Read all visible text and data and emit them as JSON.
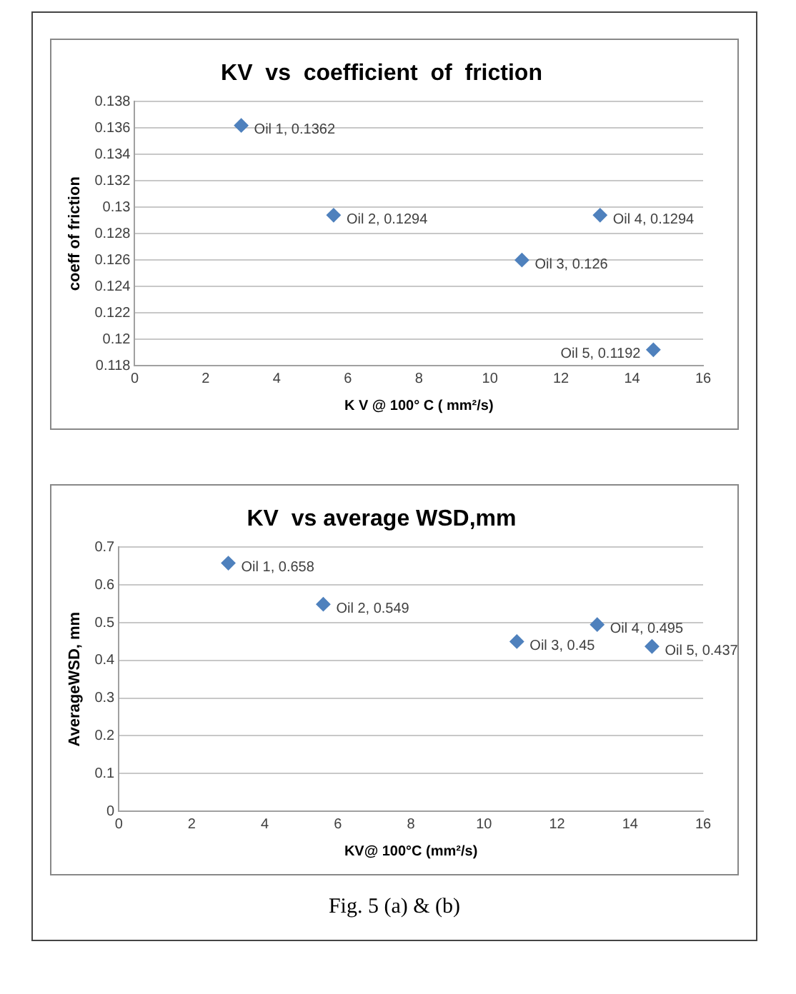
{
  "chart_data": [
    {
      "type": "scatter",
      "title": "KV  vs  coefficient  of  friction",
      "xlabel": "K V @ 100° C ( mm²/s)",
      "ylabel": "coeff of friction",
      "marker": "diamond",
      "grid": "y",
      "xlim": [
        0,
        16
      ],
      "xticks": [
        0,
        2,
        4,
        6,
        8,
        10,
        12,
        14,
        16
      ],
      "ylim": [
        0.118,
        0.138
      ],
      "yticks": [
        0.118,
        0.12,
        0.122,
        0.124,
        0.126,
        0.128,
        0.13,
        0.132,
        0.134,
        0.136,
        0.138
      ],
      "series": [
        {
          "color": "#4f81bd",
          "x": [
            3.0,
            5.6,
            10.9,
            13.1,
            14.6
          ],
          "values": [
            0.1362,
            0.1294,
            0.126,
            0.1294,
            0.1192
          ],
          "value_labels": [
            "Oil 1, 0.1362",
            "Oil 2, 0.1294",
            "Oil 3, 0.126",
            "Oil 4, 0.1294",
            "Oil 5, 0.1192"
          ]
        }
      ]
    },
    {
      "type": "scatter",
      "title": "KV  vs average WSD,mm",
      "xlabel": "KV@ 100°C (mm²/s)",
      "ylabel": "AverageWSD, mm",
      "marker": "diamond",
      "grid": "y",
      "xlim": [
        0,
        16
      ],
      "xticks": [
        0,
        2,
        4,
        6,
        8,
        10,
        12,
        14,
        16
      ],
      "ylim": [
        0,
        0.7
      ],
      "yticks": [
        0,
        0.1,
        0.2,
        0.3,
        0.4,
        0.5,
        0.6,
        0.7
      ],
      "series": [
        {
          "color": "#4f81bd",
          "x": [
            3.0,
            5.6,
            10.9,
            13.1,
            14.6
          ],
          "values": [
            0.658,
            0.549,
            0.45,
            0.495,
            0.437
          ],
          "value_labels": [
            "Oil 1, 0.658",
            "Oil 2, 0.549",
            "Oil 3, 0.45",
            "Oil 4, 0.495",
            "Oil 5, 0.437"
          ]
        }
      ],
      "annotations": [
        "Fig. 5 (a) & (b)"
      ]
    }
  ]
}
